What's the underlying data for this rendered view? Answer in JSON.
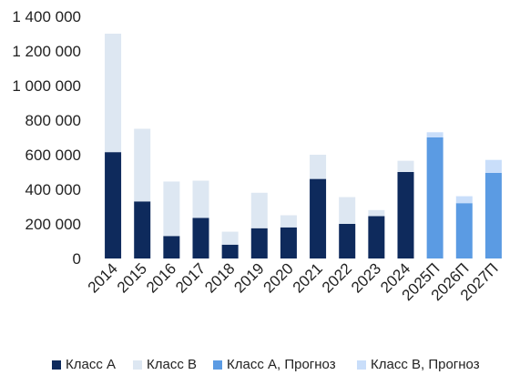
{
  "chart_data": {
    "type": "bar",
    "stacked": true,
    "categories": [
      "2014",
      "2015",
      "2016",
      "2017",
      "2018",
      "2019",
      "2020",
      "2021",
      "2022",
      "2023",
      "2024",
      "2025П",
      "2026П",
      "2027П"
    ],
    "series": [
      {
        "name": "Класс А",
        "color": "#0e2a5c",
        "values": [
          615000,
          330000,
          130000,
          235000,
          80000,
          175000,
          180000,
          460000,
          200000,
          245000,
          500000,
          null,
          null,
          null
        ]
      },
      {
        "name": "Класс В",
        "color": "#dde7f2",
        "values": [
          685000,
          420000,
          315000,
          215000,
          75000,
          205000,
          70000,
          140000,
          155000,
          35000,
          65000,
          null,
          null,
          null
        ]
      },
      {
        "name": "Класс А, Прогноз",
        "color": "#5b9be3",
        "values": [
          null,
          null,
          null,
          null,
          null,
          null,
          null,
          null,
          null,
          null,
          null,
          700000,
          320000,
          495000
        ]
      },
      {
        "name": "Класс В, Прогноз",
        "color": "#c9defa",
        "values": [
          null,
          null,
          null,
          null,
          null,
          null,
          null,
          null,
          null,
          null,
          null,
          30000,
          40000,
          75000
        ]
      }
    ],
    "ylim": [
      0,
      1400000
    ],
    "yticks": [
      0,
      200000,
      400000,
      600000,
      800000,
      1000000,
      1200000,
      1400000
    ],
    "ytick_labels": [
      "0",
      "200 000",
      "400 000",
      "600 000",
      "800 000",
      "1 000 000",
      "1 200 000",
      "1 400 000"
    ],
    "grid": false,
    "legend_position": "bottom"
  }
}
